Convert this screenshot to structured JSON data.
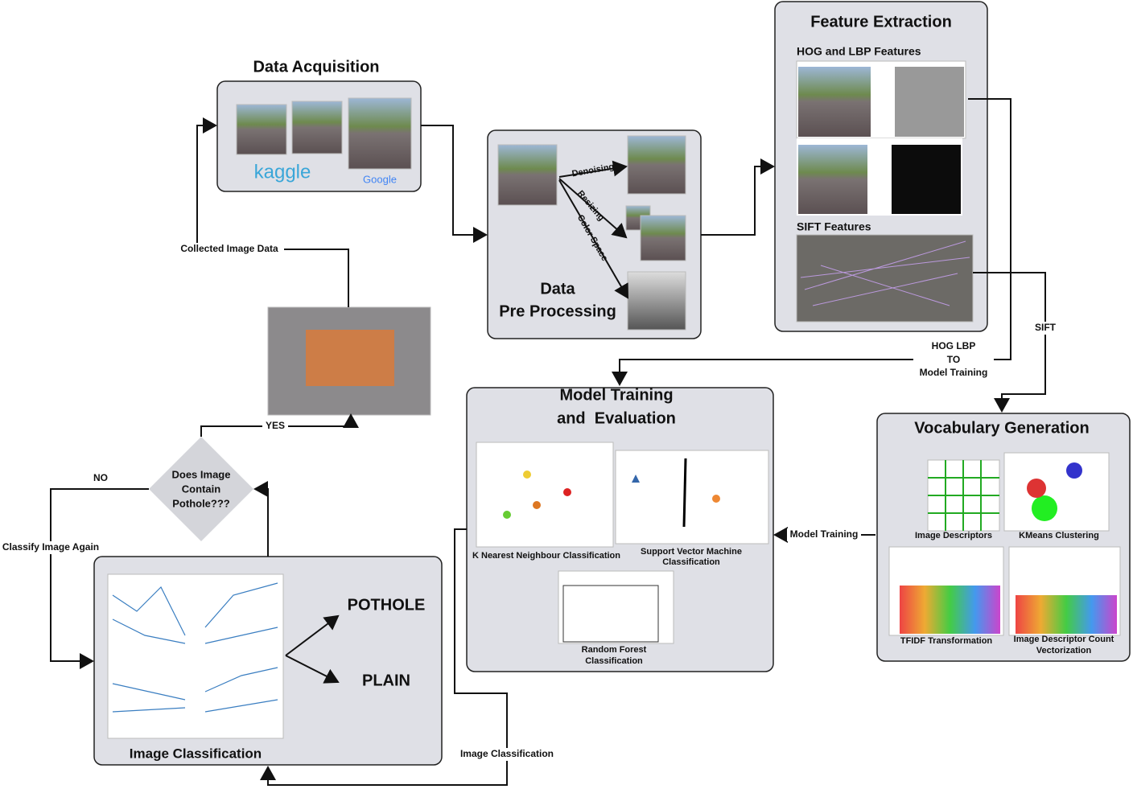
{
  "nodes": {
    "acquisition": {
      "title": [
        "Data Acquisition"
      ],
      "logos": [
        "kaggle",
        "Google"
      ]
    },
    "preprocessing": {
      "title": [
        "Data",
        "Pre Processing"
      ],
      "steps": [
        "Denoising",
        "Resizing",
        "Color Space"
      ]
    },
    "feature_extraction": {
      "title": [
        "Feature Extraction"
      ],
      "sections": [
        "HOG and LBP Features",
        "SIFT Features"
      ]
    },
    "model_training": {
      "title": [
        "Model Training",
        "and  Evaluation"
      ],
      "models": [
        [
          "K Nearest Neighbour Classification"
        ],
        [
          "Support Vector Machine",
          "Classification"
        ],
        [
          "Random Forest",
          "Classification"
        ]
      ]
    },
    "vocabulary": {
      "title": [
        "Vocabulary Generation"
      ],
      "steps": [
        [
          "Image Descriptors"
        ],
        [
          "KMeans Clustering"
        ],
        [
          "TFIDF Transformation"
        ],
        [
          "Image Descriptor Count",
          "Vectorization"
        ]
      ]
    },
    "classification": {
      "title": [
        "Image Classification"
      ],
      "outputs": [
        "POTHOLE",
        "PLAIN"
      ]
    },
    "decision": {
      "text": [
        "Does Image",
        "Contain",
        "Pothole???"
      ]
    }
  },
  "connectors": {
    "collected": "Collected Image Data",
    "yes": "YES",
    "no": "NO",
    "again": "Classify Image Again",
    "hog_lbp": [
      "HOG LBP",
      "TO",
      "Model Training"
    ],
    "sift": "SIFT",
    "model_training": "Model Training",
    "image_classification": "Image Classification"
  }
}
